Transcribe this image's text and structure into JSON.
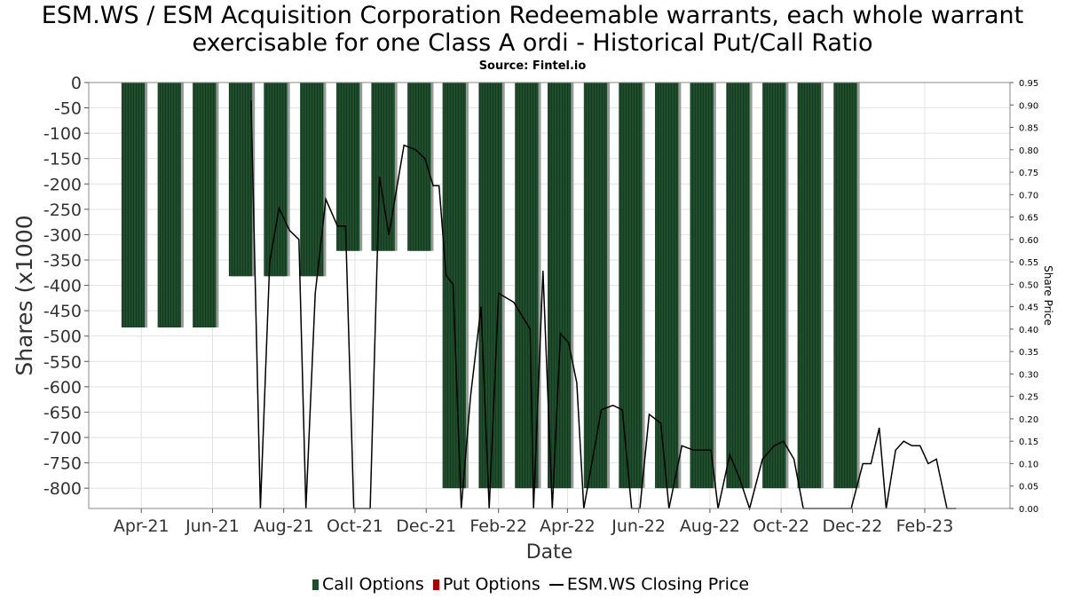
{
  "title_line1": "ESM.WS / ESM Acquisition Corporation Redeemable warrants, each whole warrant",
  "title_line2": "exercisable for one Class A ordi - Historical Put/Call Ratio",
  "source": "Source: Fintel.io",
  "colors": {
    "call": "#1e4d2b",
    "put": "#aa0000",
    "price_line": "#000000",
    "grid": "#dddddd"
  },
  "chart_data": {
    "type": "bar",
    "xlabel": "Date",
    "ylabel": "Shares (x1000",
    "y2label": "Share Price",
    "ylim": [
      -840,
      0
    ],
    "y2lim": [
      0,
      0.95
    ],
    "y_ticks": [
      0,
      -50,
      -100,
      -150,
      -200,
      -250,
      -300,
      -350,
      -400,
      -450,
      -500,
      -550,
      -600,
      -650,
      -700,
      -750,
      -800
    ],
    "y2_ticks": [
      0.95,
      0.9,
      0.85,
      0.8,
      0.75,
      0.7,
      0.65,
      0.6,
      0.55,
      0.5,
      0.45,
      0.4,
      0.35,
      0.3,
      0.25,
      0.2,
      0.15,
      0.1,
      0.05,
      0.0
    ],
    "x_domain": [
      "2021-02-15",
      "2023-04-15"
    ],
    "x_ticks": [
      {
        "label": "Apr-21",
        "date": "2021-04-01"
      },
      {
        "label": "Jun-21",
        "date": "2021-06-01"
      },
      {
        "label": "Aug-21",
        "date": "2021-08-01"
      },
      {
        "label": "Oct-21",
        "date": "2021-10-01"
      },
      {
        "label": "Dec-21",
        "date": "2021-12-01"
      },
      {
        "label": "Feb-22",
        "date": "2022-02-01"
      },
      {
        "label": "Apr-22",
        "date": "2022-04-01"
      },
      {
        "label": "Jun-22",
        "date": "2022-06-01"
      },
      {
        "label": "Aug-22",
        "date": "2022-08-01"
      },
      {
        "label": "Oct-22",
        "date": "2022-10-01"
      },
      {
        "label": "Dec-22",
        "date": "2022-12-01"
      },
      {
        "label": "Feb-23",
        "date": "2023-02-01"
      }
    ],
    "series": [
      {
        "name": "Call Options",
        "bars": [
          {
            "start": "2021-03-15",
            "end": "2021-04-04",
            "value": -483
          },
          {
            "start": "2021-04-15",
            "end": "2021-05-05",
            "value": -483
          },
          {
            "start": "2021-05-15",
            "end": "2021-06-04",
            "value": -483
          },
          {
            "start": "2021-06-15",
            "end": "2021-07-05",
            "value": -382
          },
          {
            "start": "2021-07-15",
            "end": "2021-08-04",
            "value": -382
          },
          {
            "start": "2021-08-15",
            "end": "2021-09-04",
            "value": -382
          },
          {
            "start": "2021-09-15",
            "end": "2021-10-05",
            "value": -332
          },
          {
            "start": "2021-10-15",
            "end": "2021-11-04",
            "value": -332
          },
          {
            "start": "2021-11-15",
            "end": "2021-12-05",
            "value": -332
          },
          {
            "start": "2021-12-15",
            "end": "2022-01-04",
            "value": -800
          },
          {
            "start": "2022-01-15",
            "end": "2022-02-04",
            "value": -800
          },
          {
            "start": "2022-02-15",
            "end": "2022-03-07",
            "value": -800
          },
          {
            "start": "2022-03-15",
            "end": "2022-04-04",
            "value": -800
          },
          {
            "start": "2022-04-15",
            "end": "2022-05-05",
            "value": -800
          },
          {
            "start": "2022-05-15",
            "end": "2022-06-04",
            "value": -800
          },
          {
            "start": "2022-06-15",
            "end": "2022-07-05",
            "value": -800
          },
          {
            "start": "2022-07-15",
            "end": "2022-08-04",
            "value": -800
          },
          {
            "start": "2022-08-15",
            "end": "2022-09-04",
            "value": -800
          },
          {
            "start": "2022-09-15",
            "end": "2022-10-05",
            "value": -800
          },
          {
            "start": "2022-10-15",
            "end": "2022-11-04",
            "value": -800
          },
          {
            "start": "2022-11-15",
            "end": "2022-12-05",
            "value": -800
          }
        ]
      },
      {
        "name": "Put Options",
        "bars": []
      },
      {
        "name": "ESM.WS Closing Price",
        "axis": "right",
        "points": [
          [
            "2021-07-04",
            0.91
          ],
          [
            "2021-07-12",
            0.0
          ],
          [
            "2021-07-20",
            0.55
          ],
          [
            "2021-07-28",
            0.67
          ],
          [
            "2021-08-06",
            0.62
          ],
          [
            "2021-08-14",
            0.6
          ],
          [
            "2021-08-20",
            0.0
          ],
          [
            "2021-08-28",
            0.48
          ],
          [
            "2021-09-06",
            0.69
          ],
          [
            "2021-09-16",
            0.63
          ],
          [
            "2021-09-23",
            0.63
          ],
          [
            "2021-09-30",
            0.0
          ],
          [
            "2021-10-14",
            0.0
          ],
          [
            "2021-10-22",
            0.74
          ],
          [
            "2021-10-30",
            0.61
          ],
          [
            "2021-11-12",
            0.81
          ],
          [
            "2021-11-22",
            0.8
          ],
          [
            "2021-11-30",
            0.78
          ],
          [
            "2021-12-07",
            0.72
          ],
          [
            "2021-12-12",
            0.72
          ],
          [
            "2021-12-18",
            0.52
          ],
          [
            "2021-12-24",
            0.5
          ],
          [
            "2021-12-31",
            0.0
          ],
          [
            "2022-01-08",
            0.25
          ],
          [
            "2022-01-17",
            0.45
          ],
          [
            "2022-01-24",
            0.0
          ],
          [
            "2022-02-01",
            0.48
          ],
          [
            "2022-02-14",
            0.46
          ],
          [
            "2022-02-28",
            0.4
          ],
          [
            "2022-03-03",
            0.0
          ],
          [
            "2022-03-11",
            0.53
          ],
          [
            "2022-03-19",
            0.0
          ],
          [
            "2022-03-26",
            0.39
          ],
          [
            "2022-04-02",
            0.37
          ],
          [
            "2022-04-09",
            0.28
          ],
          [
            "2022-04-15",
            0.0
          ],
          [
            "2022-04-30",
            0.22
          ],
          [
            "2022-05-10",
            0.23
          ],
          [
            "2022-05-18",
            0.22
          ],
          [
            "2022-05-26",
            0.0
          ],
          [
            "2022-06-02",
            0.0
          ],
          [
            "2022-06-10",
            0.21
          ],
          [
            "2022-06-20",
            0.19
          ],
          [
            "2022-06-27",
            0.0
          ],
          [
            "2022-07-08",
            0.14
          ],
          [
            "2022-07-18",
            0.13
          ],
          [
            "2022-08-02",
            0.13
          ],
          [
            "2022-08-08",
            0.0
          ],
          [
            "2022-08-18",
            0.12
          ],
          [
            "2022-08-26",
            0.07
          ],
          [
            "2022-09-04",
            0.0
          ],
          [
            "2022-09-15",
            0.11
          ],
          [
            "2022-09-25",
            0.14
          ],
          [
            "2022-10-03",
            0.15
          ],
          [
            "2022-10-12",
            0.11
          ],
          [
            "2022-10-20",
            0.0
          ],
          [
            "2022-11-30",
            0.0
          ],
          [
            "2022-12-10",
            0.1
          ],
          [
            "2022-12-17",
            0.1
          ],
          [
            "2022-12-24",
            0.18
          ],
          [
            "2022-12-30",
            0.0
          ],
          [
            "2023-01-07",
            0.13
          ],
          [
            "2023-01-14",
            0.15
          ],
          [
            "2023-01-21",
            0.14
          ],
          [
            "2023-01-28",
            0.14
          ],
          [
            "2023-02-04",
            0.1
          ],
          [
            "2023-02-11",
            0.11
          ],
          [
            "2023-02-20",
            0.0
          ],
          [
            "2023-02-28",
            0.0
          ]
        ]
      }
    ],
    "legend": [
      {
        "name": "Call Options",
        "color": "#1e4d2b",
        "kind": "bar"
      },
      {
        "name": "Put Options",
        "color": "#aa0000",
        "kind": "bar"
      },
      {
        "name": "ESM.WS Closing Price",
        "color": "#000000",
        "kind": "line"
      }
    ],
    "legend_position": "bottom",
    "grid": true
  }
}
